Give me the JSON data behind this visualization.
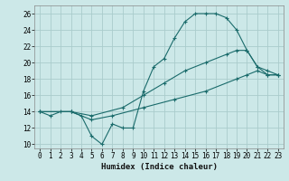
{
  "xlabel": "Humidex (Indice chaleur)",
  "bg_color": "#cce8e8",
  "grid_color": "#aacccc",
  "line_color": "#1a6b6b",
  "xlim": [
    -0.5,
    23.5
  ],
  "ylim": [
    9.5,
    27
  ],
  "xticks": [
    0,
    1,
    2,
    3,
    4,
    5,
    6,
    7,
    8,
    9,
    10,
    11,
    12,
    13,
    14,
    15,
    16,
    17,
    18,
    19,
    20,
    21,
    22,
    23
  ],
  "yticks": [
    10,
    12,
    14,
    16,
    18,
    20,
    22,
    24,
    26
  ],
  "line1_x": [
    0,
    1,
    2,
    3,
    4,
    5,
    6,
    7,
    8,
    9,
    10,
    11,
    12,
    13,
    14,
    15,
    16,
    17,
    18,
    19,
    20,
    21,
    22,
    23
  ],
  "line1_y": [
    14,
    13.5,
    14,
    14,
    13.5,
    11,
    10,
    12.5,
    12,
    12,
    16.5,
    19.5,
    20.5,
    23,
    25,
    26,
    26,
    26,
    25.5,
    24,
    21.5,
    19.5,
    18.5,
    18.5
  ],
  "line2_x": [
    0,
    3,
    5,
    7,
    10,
    13,
    16,
    19,
    20,
    21,
    22,
    23
  ],
  "line2_y": [
    14,
    14,
    13,
    13.5,
    14.5,
    15.5,
    16.5,
    18,
    18.5,
    19,
    18.5,
    18.5
  ],
  "line3_x": [
    0,
    3,
    5,
    8,
    10,
    12,
    14,
    16,
    18,
    19,
    20,
    21,
    22,
    23
  ],
  "line3_y": [
    14,
    14,
    13.5,
    14.5,
    16,
    17.5,
    19,
    20,
    21,
    21.5,
    21.5,
    19.5,
    19,
    18.5
  ],
  "xlabel_fontsize": 6.5,
  "tick_fontsize": 5.5
}
